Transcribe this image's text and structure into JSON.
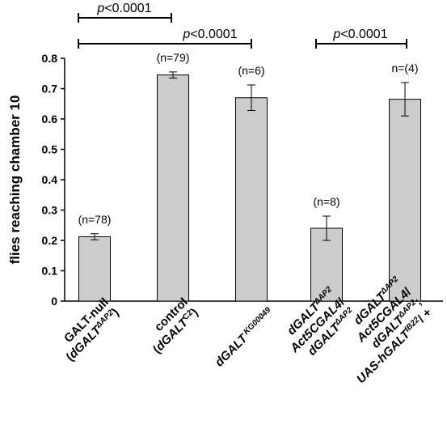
{
  "chart_data": {
    "type": "bar",
    "ylabel": "flies reaching chamber 10",
    "ylim": [
      0,
      0.8
    ],
    "yticks": [
      "0",
      "0.1",
      "0.2",
      "0.3",
      "0.4",
      "0.5",
      "0.6",
      "0.7",
      "0.8"
    ],
    "bar_color": "#cccccc",
    "categories": [
      {
        "lines": [
          [
            {
              "t": "GALT-null",
              "i": false
            }
          ],
          [
            {
              "t": "(",
              "i": false
            },
            {
              "t": "dGALT",
              "i": true
            },
            {
              "t": "ΔAP2",
              "i": true,
              "sup": true
            },
            {
              "t": ")",
              "i": false
            }
          ]
        ]
      },
      {
        "lines": [
          [
            {
              "t": "control",
              "i": false
            }
          ],
          [
            {
              "t": "(",
              "i": false
            },
            {
              "t": "dGALT",
              "i": true
            },
            {
              "t": "C2",
              "i": false,
              "sup": true
            },
            {
              "t": ")",
              "i": false
            }
          ]
        ]
      },
      {
        "lines": [
          [
            {
              "t": "dGALT",
              "i": true
            },
            {
              "t": " KG00049",
              "i": true,
              "sup": true
            }
          ]
        ]
      },
      {
        "lines": [
          [
            {
              "t": "dGALT",
              "i": true
            },
            {
              "t": "ΔAP2",
              "i": true,
              "sup": true
            }
          ],
          [
            {
              "t": "Act5CGAL4",
              "i": true
            },
            {
              "t": "/",
              "i": false
            }
          ],
          [
            {
              "t": "dGALT",
              "i": true
            },
            {
              "t": "ΔAP2",
              "i": true,
              "sup": true
            }
          ]
        ]
      },
      {
        "lines": [
          [
            {
              "t": "dGALT",
              "i": true
            },
            {
              "t": "ΔAP2",
              "i": true,
              "sup": true
            }
          ],
          [
            {
              "t": "Act5CGAL4",
              "i": true
            },
            {
              "t": "/",
              "i": false
            }
          ],
          [
            {
              "t": "dGALT",
              "i": true
            },
            {
              "t": "ΔAP2",
              "i": true,
              "sup": true
            },
            {
              "t": ";",
              "i": false
            }
          ],
          [
            {
              "t": "UAS-hGALT",
              "i": true
            },
            {
              "t": "IB22",
              "i": true,
              "sup": true
            },
            {
              "t": "/ +",
              "i": false
            }
          ]
        ]
      }
    ],
    "values": [
      0.212,
      0.745,
      0.67,
      0.24,
      0.665
    ],
    "errors": [
      0.01,
      0.01,
      0.042,
      0.04,
      0.055
    ],
    "n_labels": [
      "(n=78)",
      "(n=79)",
      "(n=6)",
      "(n=8)",
      "n=(4)"
    ],
    "significance": [
      {
        "from": 0,
        "to": 1,
        "italic": "p",
        "rest": "<0.0001"
      },
      {
        "from": 0,
        "to": 2,
        "italic": "p",
        "rest": "<0.0001"
      },
      {
        "from": 3,
        "to": 4,
        "italic": "p",
        "rest": "<0.0001"
      }
    ]
  }
}
